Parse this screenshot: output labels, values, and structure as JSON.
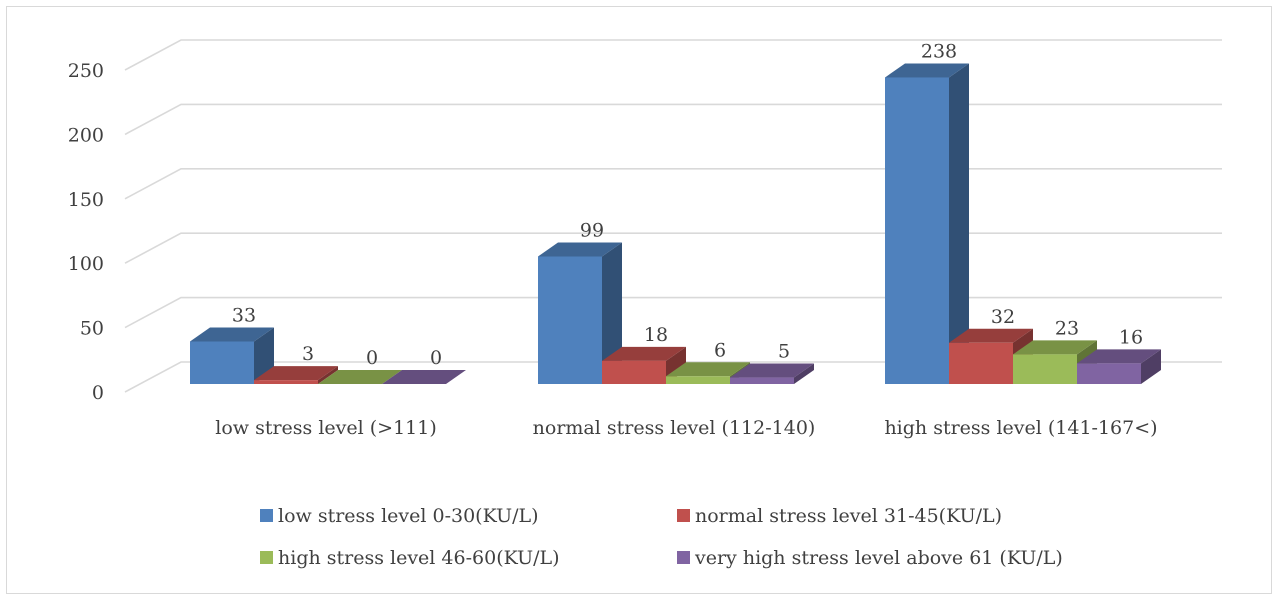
{
  "chart_data": {
    "type": "bar",
    "title": "",
    "xlabel": "",
    "ylabel": "",
    "ylim": [
      0,
      250
    ],
    "yticks": [
      0,
      50,
      100,
      150,
      200,
      250
    ],
    "grid": true,
    "legend_position": "bottom",
    "categories": [
      "low stress level (>111)",
      "normal stress level  (112-140)",
      "high stress level  (141-167<)"
    ],
    "series": [
      {
        "name": "low stress level 0-30(KU/L)",
        "values": [
          33,
          99,
          238
        ],
        "color": "#4f81bd"
      },
      {
        "name": "normal stress level 31-45(KU/L)",
        "values": [
          3,
          18,
          32
        ],
        "color": "#c0504d"
      },
      {
        "name": "high stress level 46-60(KU/L)",
        "values": [
          0,
          6,
          23
        ],
        "color": "#9bbb59"
      },
      {
        "name": "very high stress level above 61 (KU/L)",
        "values": [
          0,
          5,
          16
        ],
        "color": "#8064a2"
      }
    ]
  }
}
